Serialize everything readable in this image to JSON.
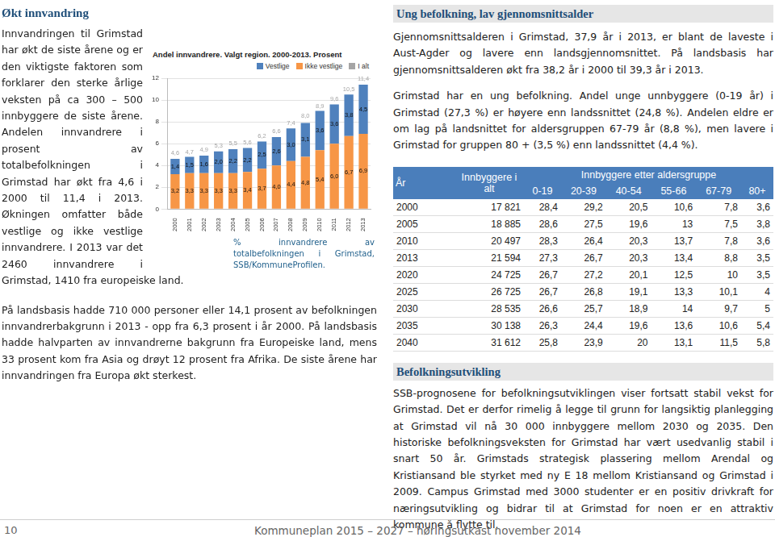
{
  "left": {
    "heading": "Økt innvandring",
    "paragraph1": "Innvandringen til Grimstad har økt de siste årene og er den viktigste faktoren som forklarer den sterke årlige veksten på ca 300 – 500 innbyggere de siste årene. Andelen innvandrere i prosent av totalbefolkningen i Grimstad har økt fra 4,6 i 2000 til 11,4 i 2013. Økningen omfatter både vestlige og ikke vestlige innvandrere. I 2013 var det 2460 innvandrere i Grimstad, 1410 fra europeiske land.",
    "caption": "% innvandrere av totalbefolkningen i Grimstad, SSB/KommuneProfilen.",
    "paragraph2": "På landsbasis hadde 710 000 personer eller 14,1 prosent av befolkningen innvandrerbakgrunn i 2013 - opp fra 6,3 prosent i år 2000. På landsbasis hadde halvparten av innvandrerne bakgrunn fra Europeiske land, mens 33 prosent kom fra Asia og drøyt 12 prosent fra Afrika. De siste årene har innvandringen fra Europa økt sterkest."
  },
  "chart_data": {
    "type": "bar",
    "title": "Andel innvandrere. Valgt region. 2000-2013. Prosent",
    "categories": [
      "2000",
      "2001",
      "2002",
      "2003",
      "2004",
      "2005",
      "2006",
      "2007",
      "2008",
      "2009",
      "2010",
      "2011",
      "2012",
      "2013"
    ],
    "stacked": true,
    "data_labels": true,
    "grid": true,
    "legend": "top-right",
    "ylim": [
      0,
      12
    ],
    "yticks": [
      0,
      2,
      4,
      6,
      8,
      10,
      12
    ],
    "series": [
      {
        "name": "Vestlige",
        "color": "#4f81bd",
        "values": [
          1.4,
          1.5,
          1.6,
          2.0,
          2.2,
          2.2,
          2.5,
          2.6,
          3.0,
          3.1,
          3.6,
          3.6,
          3.8,
          4.5
        ],
        "value_labels": [
          "1,4",
          "1,5",
          "1,6",
          "2,0",
          "2,2",
          "2,2",
          "2,5",
          "2,6",
          "3,0",
          "3,1",
          "3,6",
          "3,6",
          "3,8",
          "4,5"
        ]
      },
      {
        "name": "Ikke vestlige",
        "color": "#f79646",
        "values": [
          3.2,
          3.3,
          3.3,
          3.3,
          3.3,
          3.4,
          3.7,
          4.0,
          4.4,
          4.8,
          5.4,
          6.0,
          6.7,
          6.9
        ],
        "value_labels": [
          "3,2",
          "3,3",
          "3,3",
          "3,3",
          "3,3",
          "3,4",
          "3,7",
          "4,0",
          "4,4",
          "4,8",
          "5,4",
          "6,0",
          "6,7",
          "6,9"
        ]
      },
      {
        "name": "I alt",
        "color": "#a5a5a5",
        "type": "line",
        "line_style": "none",
        "marker": "none",
        "values": [
          4.6,
          4.7,
          4.9,
          5.3,
          5.5,
          5.6,
          6.2,
          6.6,
          7.4,
          8.0,
          8.9,
          9.6,
          10.5,
          11.4
        ],
        "value_labels": [
          "4,6",
          "4,7",
          "4,9",
          "5,3",
          "5,5",
          "5,6",
          "6,2",
          "6,6",
          "7,4",
          "8,0",
          "8,9",
          "9,6",
          "10,5",
          "11,4"
        ]
      }
    ]
  },
  "right": {
    "heading": "Ung befolkning, lav gjennomsnittsalder",
    "paragraphs": [
      "Gjennomsnittsalderen i Grimstad, 37,9 år i 2013, er blant de laveste i Aust-Agder og lavere enn landsgjennomsnittet. På landsbasis har gjennomsnittsalderen økt fra 38,2 år i 2000 til 39,3 år i 2013.",
      "Grimstad har en ung befolkning. Andel unge unnbyggere (0-19 år) i Grimstad (27,3 %) er høyere enn landssnittet (24,8 %). Andelen eldre er om lag på landsnittet for aldersgruppen 67-79 år (8,8 %), men lavere i Grimstad for gruppen 80 + (3,5 %) enn landssnittet (4,4 %)."
    ],
    "table": {
      "header": [
        "År",
        "Innbyggere i alt",
        "Innbyggere etter aldersgruppe"
      ],
      "age_groups": [
        "0-19",
        "20-39",
        "40-54",
        "55-66",
        "67-79",
        "80+"
      ],
      "rows": [
        [
          "2000",
          "17 821",
          "28,4",
          "29,2",
          "20,5",
          "10,6",
          "7,8",
          "3,6"
        ],
        [
          "2005",
          "18 885",
          "28,6",
          "27,5",
          "19,6",
          "13",
          "7,5",
          "3,8"
        ],
        [
          "2010",
          "20 497",
          "28,3",
          "26,4",
          "20,3",
          "13,7",
          "7,8",
          "3,6"
        ],
        [
          "2013",
          "21 594",
          "27,3",
          "26,7",
          "20,3",
          "13,4",
          "8,8",
          "3,5"
        ],
        [
          "2020",
          "24 725",
          "26,7",
          "27,2",
          "20,1",
          "12,5",
          "10",
          "3,5"
        ],
        [
          "2025",
          "26 725",
          "26,7",
          "26,8",
          "19,1",
          "13,3",
          "10,1",
          "4"
        ],
        [
          "2030",
          "28 535",
          "26,6",
          "25,7",
          "18,9",
          "14",
          "9,7",
          "5"
        ],
        [
          "2035",
          "30 138",
          "26,3",
          "24,4",
          "19,6",
          "13,6",
          "10,6",
          "5,4"
        ],
        [
          "2040",
          "31 612",
          "25,8",
          "23,9",
          "20",
          "13,1",
          "11,5",
          "5,8"
        ]
      ]
    },
    "heading2": "Befolkningsutvikling",
    "paragraph3": "SSB-prognosene for befolkningsutviklingen viser fortsatt stabil vekst for Grimstad. Det er derfor rimelig å legge til grunn for langsiktig planlegging at Grimstad vil nå 30 000 innbyggere mellom 2030 og 2035. Den historiske befolkningsveksten for Grimstad har vært usedvanlig stabil i snart 50 år. Grimstads strategisk plassering mellom Arendal og Kristiansand ble styrket med ny E 18 mellom Kristiansand og Grimstad i 2009. Campus Grimstad med 3000 studenter er en positiv drivkraft for næringsutvikling og bidrar til at Grimstad for noen er en attraktiv kommune å flytte til."
  },
  "footer": {
    "page": "10",
    "text": "Kommuneplan 2015 – 2027 – høringsutkast november 2014"
  }
}
